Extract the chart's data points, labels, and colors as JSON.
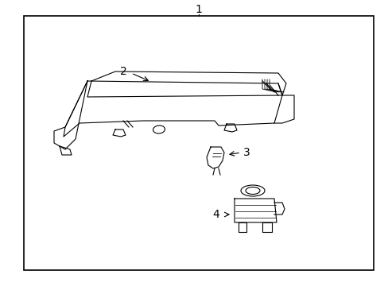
{
  "title": "",
  "background_color": "#ffffff",
  "border_color": "#000000",
  "line_color": "#000000",
  "text_color": "#000000",
  "label_1": "1",
  "label_2": "2",
  "label_3": "3",
  "label_4": "4",
  "figsize": [
    4.89,
    3.6
  ],
  "dpi": 100
}
